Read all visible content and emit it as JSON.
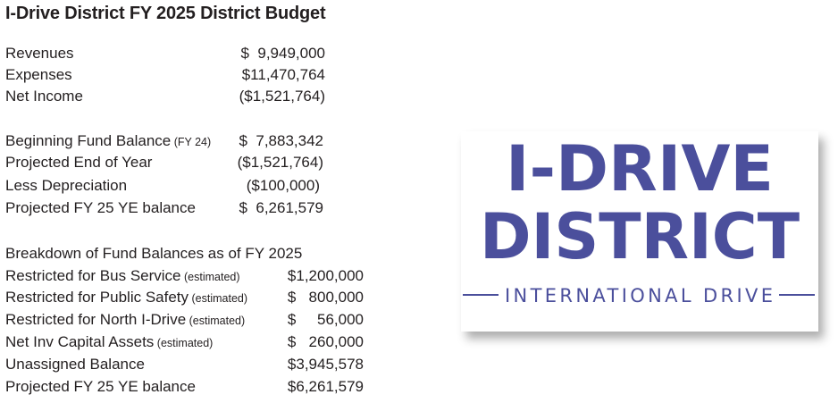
{
  "title": "I-Drive District FY 2025 District Budget",
  "summary": [
    {
      "label": "Revenues",
      "amount": "$  9,949,000"
    },
    {
      "label": "Expenses",
      "amount": "$11,470,764"
    },
    {
      "label": "Net Income",
      "amount": "($1,521,764)"
    }
  ],
  "fund": [
    {
      "label": "Beginning Fund Balance",
      "note": " (FY 24)",
      "amount": "$  7,883,342"
    },
    {
      "label": "Projected End of Year",
      "note": "",
      "amount": "($1,521,764)"
    },
    {
      "label": "Less Depreciation",
      "note": "",
      "amount": "($100,000)"
    },
    {
      "label": "Projected FY 25 YE balance",
      "note": "",
      "amount": "$  6,261,579"
    }
  ],
  "breakdown": {
    "heading": "Breakdown of Fund Balances as of FY 2025",
    "rows": [
      {
        "label": "Restricted for Bus Service",
        "note": " (estimated)",
        "amount": "$1,200,000"
      },
      {
        "label": "Restricted for Public Safety",
        "note": " (estimated)",
        "amount": "$   800,000"
      },
      {
        "label": "Restricted for North I-Drive",
        "note": " (estimated)",
        "amount": "$     56,000"
      },
      {
        "label": "Net Inv Capital Assets",
        "note": " (estimated)",
        "amount": "$   260,000"
      },
      {
        "label": "Unassigned Balance",
        "note": "",
        "amount": "$3,945,578"
      },
      {
        "label": "Projected FY 25 YE balance",
        "note": "",
        "amount": "$6,261,579"
      }
    ]
  },
  "logo": {
    "line1": "I-DRIVE",
    "line2": "DISTRICT",
    "tagline": "INTERNATIONAL DRIVE",
    "color": "#4b4f9c"
  }
}
